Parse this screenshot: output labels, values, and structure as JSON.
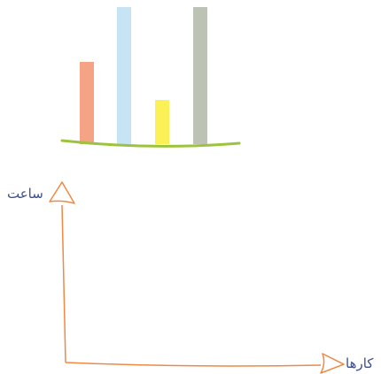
{
  "chart_data": {
    "type": "bar",
    "categories": [
      "",
      "",
      "",
      ""
    ],
    "values": [
      93,
      155,
      50,
      155
    ],
    "ylim": [
      0,
      155
    ],
    "bar_colors": [
      "#f4a385",
      "#c6e4f4",
      "#fbf056",
      "#bcc3b4"
    ],
    "baseline_color": "#9bc43c",
    "grid": false,
    "legend": "none"
  },
  "axes": {
    "ylabel": "ساعت",
    "xlabel": "کارها",
    "axis_color": "#ee8a45",
    "label_color": "#3b4d8f"
  }
}
